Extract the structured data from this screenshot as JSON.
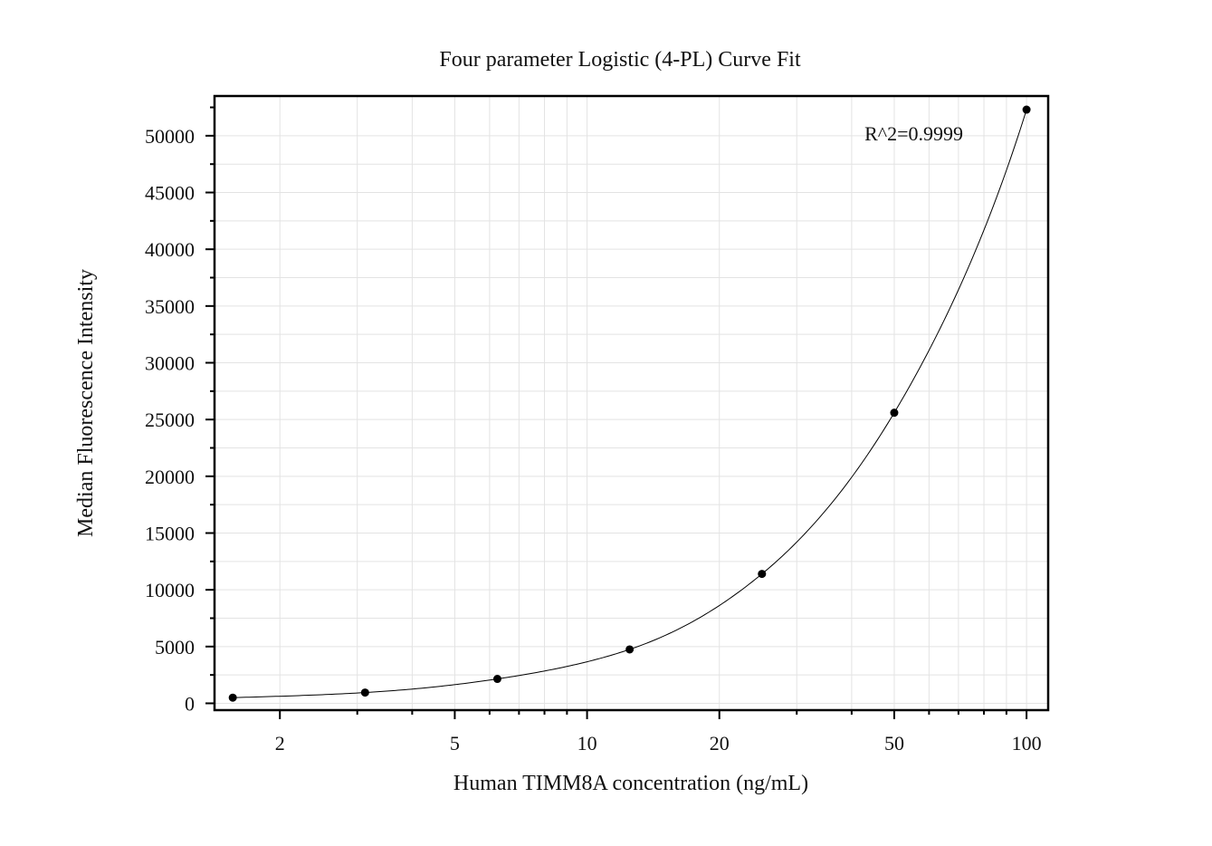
{
  "chart_data": {
    "type": "scatter",
    "title": "Four parameter Logistic (4-PL) Curve Fit",
    "xlabel": "Human TIMM8A concentration (ng/mL)",
    "ylabel": "Median Fluorescence Intensity",
    "x_scale": "log",
    "xlim": [
      1.42,
      112
    ],
    "ylim": [
      -600,
      53500
    ],
    "x_ticks": [
      2,
      5,
      10,
      20,
      50,
      100
    ],
    "x_tick_labels": [
      "2",
      "5",
      "10",
      "20",
      "50",
      "100"
    ],
    "y_ticks": [
      0,
      5000,
      10000,
      15000,
      20000,
      25000,
      30000,
      35000,
      40000,
      45000,
      50000
    ],
    "y_tick_labels": [
      "0",
      "5000",
      "10000",
      "15000",
      "20000",
      "25000",
      "30000",
      "35000",
      "40000",
      "45000",
      "50000"
    ],
    "grid": true,
    "series": [
      {
        "type": "scatter",
        "x": [
          1.5625,
          3.125,
          6.25,
          12.5,
          25,
          50,
          100
        ],
        "y": [
          500,
          950,
          2150,
          4750,
          11400,
          25600,
          52300
        ],
        "color": "#000000"
      }
    ],
    "fit_curve": {
      "model": "4PL",
      "color": "#000000"
    },
    "annotations": [
      {
        "text": "R^2=0.9999",
        "position": "top-right"
      }
    ]
  }
}
